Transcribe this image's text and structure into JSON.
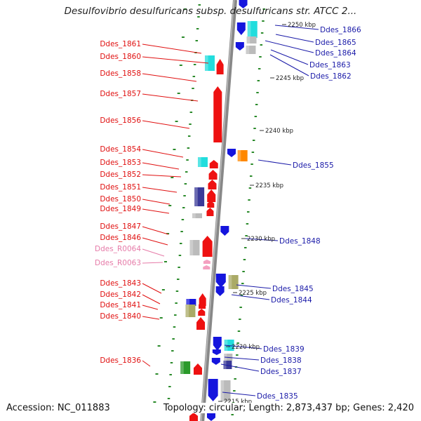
{
  "title": "Desulfovibrio desulfuricans subsp. desulfuricans str. ATCC 2...",
  "footer": {
    "accession": "Accession: NC_011883",
    "topology": "Topology: circular; Length: 2,873,437 bp; Genes: 2,420"
  },
  "kbp_ticks": [
    "2250 kbp",
    "2245 kbp",
    "2240 kbp",
    "2235 kbp",
    "2230 kbp",
    "2225 kbp",
    "2220 kbp",
    "2215 kbp"
  ],
  "left_labels": [
    {
      "text": "Ddes_1861",
      "color": "red"
    },
    {
      "text": "Ddes_1860",
      "color": "red"
    },
    {
      "text": "Ddes_1858",
      "color": "red"
    },
    {
      "text": "Ddes_1857",
      "color": "red"
    },
    {
      "text": "Ddes_1856",
      "color": "red"
    },
    {
      "text": "Ddes_1854",
      "color": "red"
    },
    {
      "text": "Ddes_1853",
      "color": "red"
    },
    {
      "text": "Ddes_1852",
      "color": "red"
    },
    {
      "text": "Ddes_1851",
      "color": "red"
    },
    {
      "text": "Ddes_1850",
      "color": "red"
    },
    {
      "text": "Ddes_1849",
      "color": "red"
    },
    {
      "text": "Ddes_1847",
      "color": "red"
    },
    {
      "text": "Ddes_1846",
      "color": "red"
    },
    {
      "text": "Ddes_R0064",
      "color": "pink"
    },
    {
      "text": "Ddes_R0063",
      "color": "pink"
    },
    {
      "text": "Ddes_1843",
      "color": "red"
    },
    {
      "text": "Ddes_1842",
      "color": "red"
    },
    {
      "text": "Ddes_1841",
      "color": "red"
    },
    {
      "text": "Ddes_1840",
      "color": "red"
    },
    {
      "text": "Ddes_1836",
      "color": "red"
    }
  ],
  "right_labels": [
    {
      "text": "Ddes_1866",
      "color": "blue"
    },
    {
      "text": "Ddes_1865",
      "color": "blue"
    },
    {
      "text": "Ddes_1864",
      "color": "blue"
    },
    {
      "text": "Ddes_1863",
      "color": "blue"
    },
    {
      "text": "Ddes_1862",
      "color": "blue"
    },
    {
      "text": "Ddes_1855",
      "color": "blue"
    },
    {
      "text": "Ddes_1848",
      "color": "blue"
    },
    {
      "text": "Ddes_1845",
      "color": "blue"
    },
    {
      "text": "Ddes_1844",
      "color": "blue"
    },
    {
      "text": "Ddes_1839",
      "color": "blue"
    },
    {
      "text": "Ddes_1838",
      "color": "blue"
    },
    {
      "text": "Ddes_1837",
      "color": "blue"
    },
    {
      "text": "Ddes_1835",
      "color": "blue"
    }
  ],
  "colors": {
    "forward_gene": "#ee1111",
    "reverse_gene": "#1515dd",
    "cyan": "#22dddd",
    "navy": "#3a3a99",
    "olive": "#aaaa66",
    "green": "#2a9a2a",
    "orange": "#ff8800",
    "gray": "#bbbbbb",
    "rna": "#f4a0c0",
    "backbone": "#888888",
    "tick": "#2a8a2a"
  }
}
